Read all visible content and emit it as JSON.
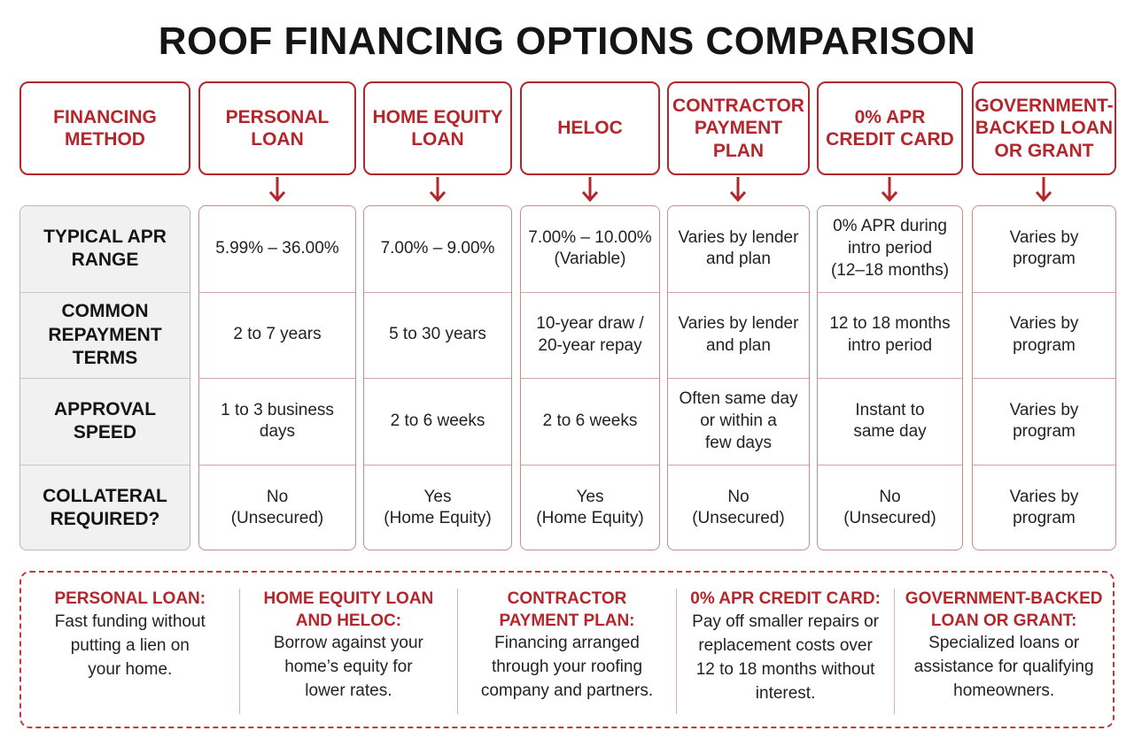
{
  "title": "ROOF FINANCING OPTIONS COMPARISON",
  "columns": [
    {
      "header": "FINANCING\nMETHOD"
    },
    {
      "header": "PERSONAL LOAN",
      "apr": "5.99% – 36.00%",
      "terms": "2 to 7 years",
      "speed": "1 to 3 business\ndays",
      "collateral": "No\n(Unsecured)"
    },
    {
      "header": "HOME EQUITY\nLOAN",
      "apr": "7.00% – 9.00%",
      "terms": "5 to 30 years",
      "speed": "2 to 6 weeks",
      "collateral": "Yes\n(Home Equity)"
    },
    {
      "header": "HELOC",
      "apr": "7.00% – 10.00%\n(Variable)",
      "terms": "10-year draw /\n20-year repay",
      "speed": "2 to 6 weeks",
      "collateral": "Yes\n(Home Equity)"
    },
    {
      "header": "CONTRACTOR\nPAYMENT PLAN",
      "apr": "Varies by lender\nand plan",
      "terms": "Varies by lender\nand plan",
      "speed": "Often same day\nor within a\nfew days",
      "collateral": "No\n(Unsecured)"
    },
    {
      "header": "0% APR\nCREDIT CARD",
      "apr": "0% APR during\nintro period\n(12–18 months)",
      "terms": "12 to 18 months\nintro period",
      "speed": "Instant to\nsame day",
      "collateral": "No\n(Unsecured)"
    },
    {
      "header": "GOVERNMENT-\nBACKED LOAN\nOR GRANT",
      "apr": "Varies by\nprogram",
      "terms": "Varies by\nprogram",
      "speed": "Varies by\nprogram",
      "collateral": "Varies by\nprogram"
    }
  ],
  "row_labels": {
    "apr": "TYPICAL APR\nRANGE",
    "terms": "COMMON\nREPAYMENT TERMS",
    "speed": "APPROVAL SPEED",
    "collateral": "COLLATERAL\nREQUIRED?"
  },
  "notes": [
    {
      "title": "PERSONAL LOAN:",
      "body": "Fast funding without\nputting a lien on\nyour home."
    },
    {
      "title": "HOME EQUITY LOAN\nAND HELOC:",
      "body": "Borrow against your\nhome’s equity for\nlower rates."
    },
    {
      "title": "CONTRACTOR\nPAYMENT PLAN:",
      "body": "Financing arranged\nthrough your roofing\ncompany and partners."
    },
    {
      "title": "0% APR CREDIT CARD:",
      "body": "Pay off smaller repairs or\nreplacement costs over\n12 to 18 months without\ninterest."
    },
    {
      "title": "GOVERNMENT-BACKED\nLOAN OR GRANT:",
      "body": "Specialized loans or\nassistance for qualifying\nhomeowners."
    }
  ],
  "colors": {
    "accent": "#b3262b",
    "row_label_bg": "#f1f1f1"
  }
}
